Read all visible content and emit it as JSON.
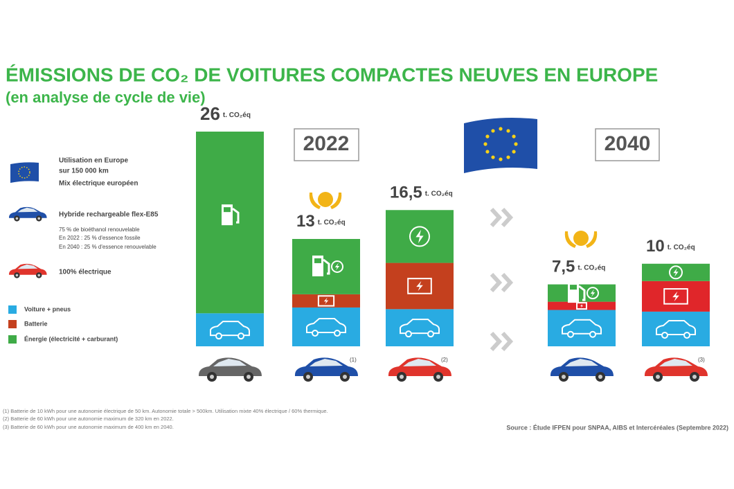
{
  "chart_data": {
    "type": "stacked-bar",
    "title": "ÉMISSIONS DE CO₂ DE VOITURES COMPACTES NEUVES EN EUROPE",
    "subtitle": "(en analyse de cycle de vie)",
    "groups": [
      "2022",
      "2040"
    ],
    "categories": [
      null,
      null,
      null,
      null,
      null
    ],
    "series": [
      {
        "name": "Voiture + pneus",
        "color": "#29abe2",
        "values": [
          4,
          4.7,
          4.5,
          4.4,
          4.2
        ]
      },
      {
        "name": "Batterie",
        "color": "#c4401e",
        "values": [
          0,
          1.6,
          5.6,
          1.0,
          3.7
        ]
      },
      {
        "name": "Énergie (électricité + carburant)",
        "color": "#3fab47",
        "values": [
          22,
          6.7,
          6.4,
          2.1,
          2.1
        ]
      }
    ],
    "totals": [
      26,
      13,
      16.5,
      7.5,
      10
    ],
    "total_labels": [
      "26",
      "13",
      "16,5",
      "7,5",
      "10"
    ],
    "unit": "t. CO₂éq",
    "car_notes": [
      "(1)",
      "(2)",
      "(3)"
    ],
    "legend_cars": {
      "europe": [
        "Utilisation en Europe",
        "sur 150 000 km",
        "Mix électrique européen"
      ],
      "hybrid": "Hybride rechargeable flex-E85",
      "hybrid_notes": [
        "75 % de bioéthanol renouvelable",
        "En 2022 : 25 % d'essence fossile",
        "En 2040 : 25 % d'essence renouvelable"
      ],
      "electric": "100% électrique"
    },
    "footnotes": [
      "(1) Batterie de 10 kWh pour une autonomie électrique de 50 km. Autonomie totale > 500km. Utilisation mixte 40% électrique / 60% thermique.",
      "(2) Batterie de 60 kWh pour une autonomie maximum de 320 km en 2022.",
      "(3) Batterie de 60 kWh pour une autonomie maximum de 400 km en 2040."
    ],
    "source": "Source : Étude IFPEN pour SNPAA, AIBS et Intercéréales (Septembre 2022)"
  }
}
